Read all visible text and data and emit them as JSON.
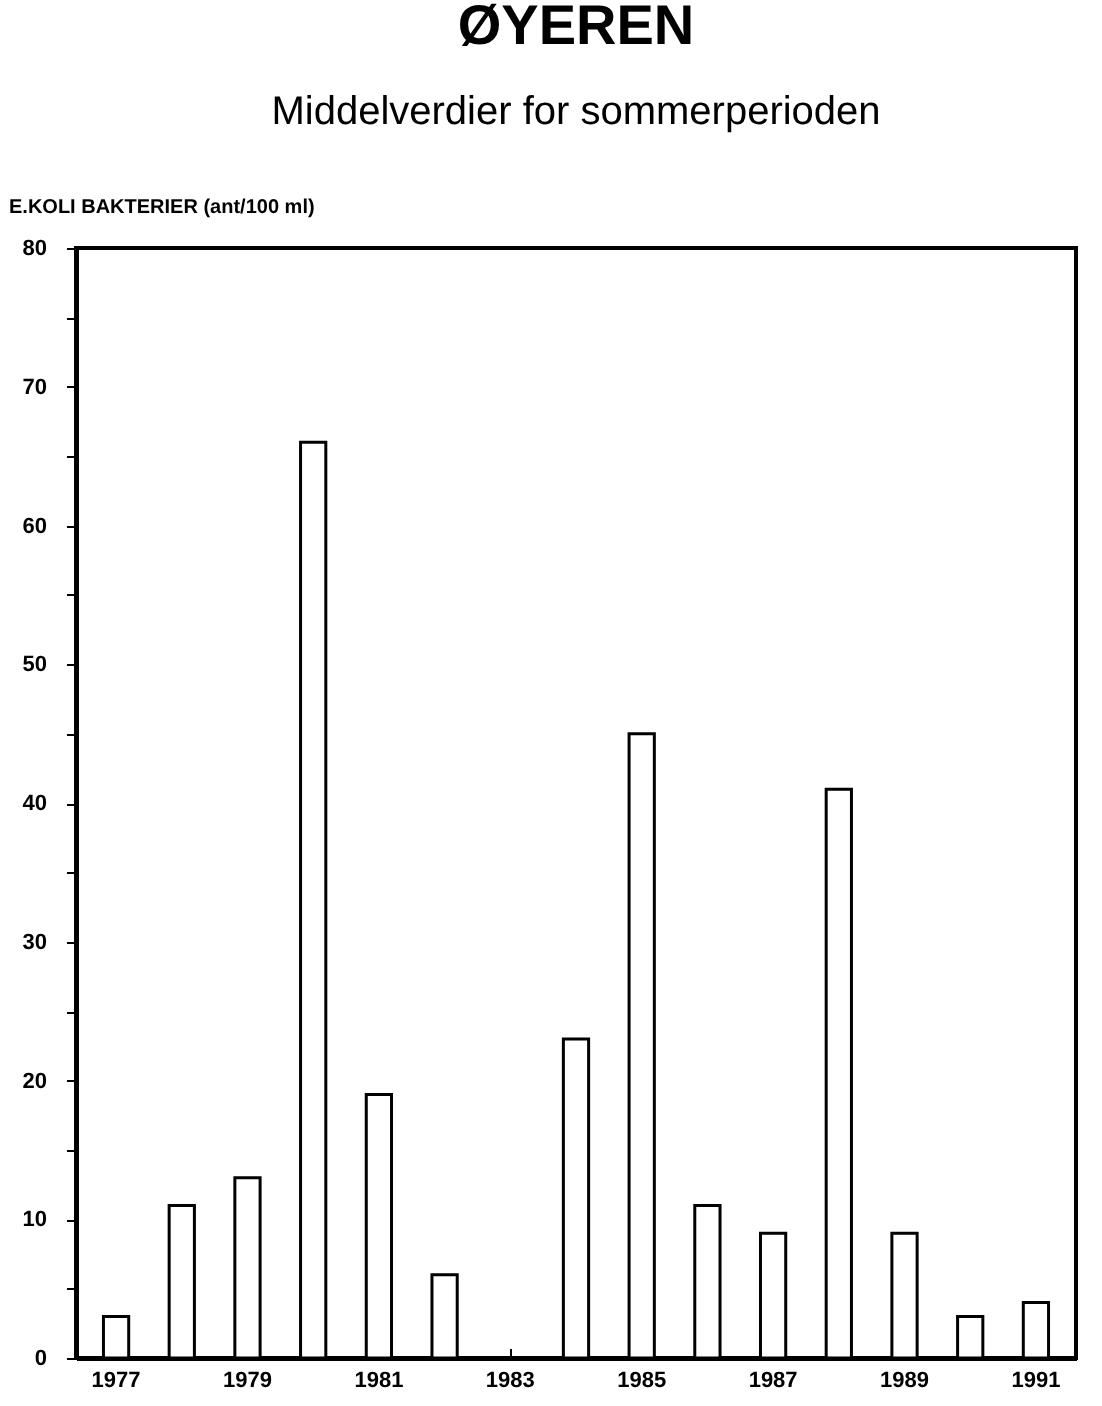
{
  "chart_data": {
    "type": "bar",
    "title": "ØYEREN",
    "subtitle": "Middelverdier for sommerperioden",
    "ylabel": "E.KOLI BAKTERIER (ant/100 ml)",
    "categories": [
      "1977",
      null,
      "1979",
      null,
      "1981",
      null,
      "1983",
      null,
      "1985",
      null,
      "1987",
      null,
      "1989",
      null,
      "1991"
    ],
    "values": [
      3,
      11,
      13,
      66,
      19,
      6,
      null,
      23,
      45,
      11,
      9,
      41,
      9,
      3,
      4
    ],
    "color": "#ffffff",
    "ylim": [
      0,
      80
    ],
    "yticks": [
      0,
      {
        "value": 5,
        "label": null
      },
      10,
      {
        "value": 15,
        "label": null
      },
      20,
      {
        "value": 25,
        "label": null
      },
      30,
      {
        "value": 35,
        "label": null
      },
      40,
      {
        "value": 45,
        "label": null
      },
      50,
      {
        "value": 55,
        "label": null
      },
      60,
      {
        "value": 65,
        "label": null
      },
      70,
      {
        "value": 75,
        "label": null
      },
      80
    ],
    "grid": false
  }
}
